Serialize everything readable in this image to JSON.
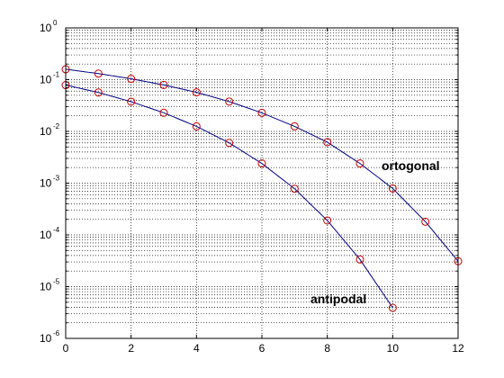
{
  "colors": {
    "line": "#000080",
    "marker": "#c00000",
    "grid": "#000000",
    "axis": "#000000",
    "background": "#ffffff"
  },
  "chart_data": {
    "type": "line",
    "title": "",
    "xlabel": "",
    "ylabel": "",
    "xlim": [
      0,
      12
    ],
    "ylim": [
      1e-06,
      1
    ],
    "yscale": "log",
    "grid": "dotted, major and minor",
    "x_ticks": [
      "0",
      "2",
      "4",
      "6",
      "8",
      "10",
      "12"
    ],
    "y_ticks": [
      {
        "base": "10",
        "exp": "0"
      },
      {
        "base": "10",
        "exp": "-1"
      },
      {
        "base": "10",
        "exp": "-2"
      },
      {
        "base": "10",
        "exp": "-3"
      },
      {
        "base": "10",
        "exp": "-4"
      },
      {
        "base": "10",
        "exp": "-5"
      },
      {
        "base": "10",
        "exp": "-6"
      }
    ],
    "series": [
      {
        "name": "ortogonal",
        "x": [
          0,
          1,
          2,
          3,
          4,
          5,
          6,
          7,
          8,
          9,
          10,
          11,
          12
        ],
        "y": [
          0.159,
          0.131,
          0.104,
          0.079,
          0.0569,
          0.0377,
          0.0228,
          0.0125,
          0.0062,
          0.0024,
          0.00079,
          0.00018,
          3.1e-05
        ]
      },
      {
        "name": "antipodal",
        "x": [
          0,
          1,
          2,
          3,
          4,
          5,
          6,
          7,
          8,
          9,
          10
        ],
        "y": [
          0.0786,
          0.0565,
          0.0375,
          0.0229,
          0.0125,
          0.006,
          0.0024,
          0.00078,
          0.00019,
          3.35e-05,
          3.9e-06
        ]
      }
    ],
    "labels": {
      "ortogonal": "ortogonal",
      "antipodal": "antipodal"
    }
  }
}
